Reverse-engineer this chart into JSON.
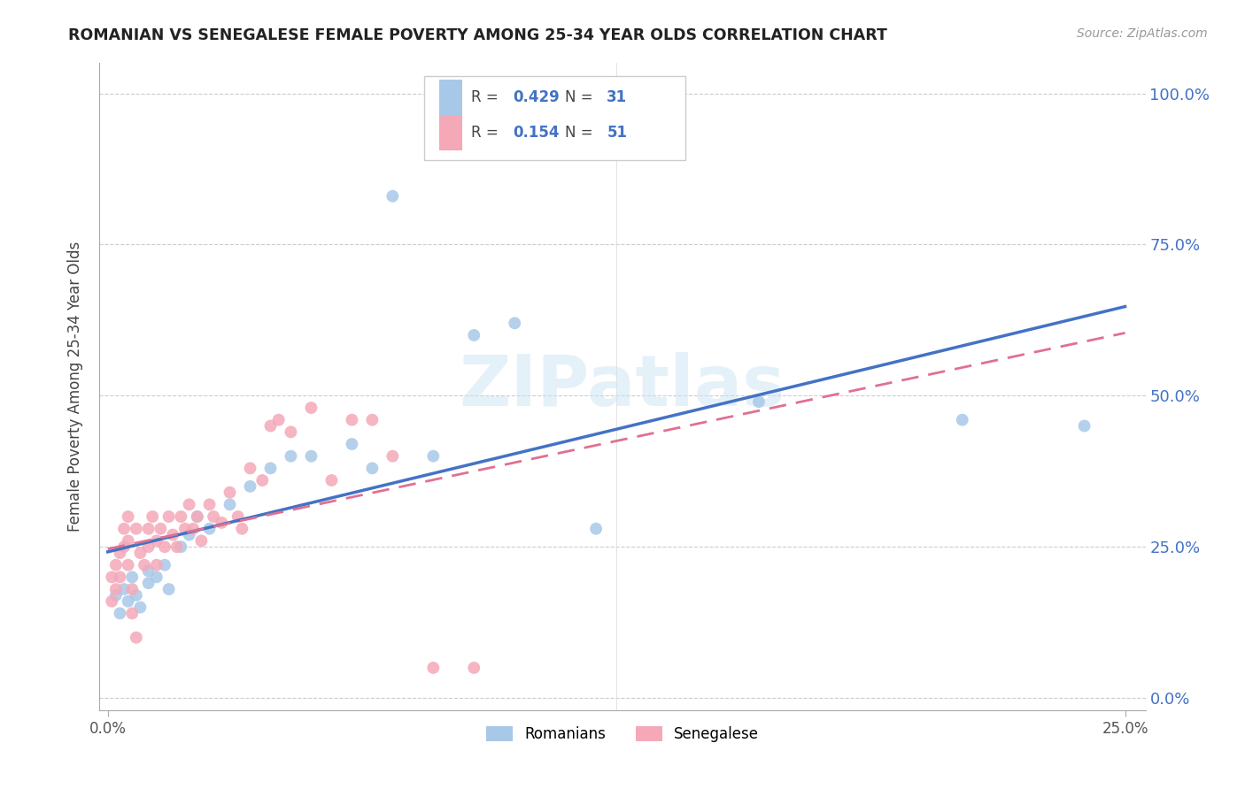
{
  "title": "ROMANIAN VS SENEGALESE FEMALE POVERTY AMONG 25-34 YEAR OLDS CORRELATION CHART",
  "source": "Source: ZipAtlas.com",
  "ylabel_label": "Female Poverty Among 25-34 Year Olds",
  "xlim": [
    -0.002,
    0.255
  ],
  "ylim": [
    -0.02,
    1.05
  ],
  "ytick_vals": [
    0.0,
    0.25,
    0.5,
    0.75,
    1.0
  ],
  "xtick_vals": [
    0.0,
    0.25
  ],
  "romanian_color": "#a8c8e8",
  "senegalese_color": "#f4a8b8",
  "trend_romanian_color": "#4472c4",
  "trend_senegalese_color": "#e07090",
  "watermark": "ZIPatlas",
  "romanian_x": [
    0.002,
    0.003,
    0.004,
    0.005,
    0.006,
    0.007,
    0.008,
    0.01,
    0.01,
    0.012,
    0.014,
    0.015,
    0.018,
    0.02,
    0.022,
    0.025,
    0.03,
    0.035,
    0.04,
    0.045,
    0.05,
    0.06,
    0.065,
    0.07,
    0.08,
    0.09,
    0.1,
    0.12,
    0.16,
    0.21,
    0.24
  ],
  "romanian_y": [
    0.17,
    0.14,
    0.18,
    0.16,
    0.2,
    0.17,
    0.15,
    0.19,
    0.21,
    0.2,
    0.22,
    0.18,
    0.25,
    0.27,
    0.3,
    0.28,
    0.32,
    0.35,
    0.38,
    0.4,
    0.4,
    0.42,
    0.38,
    0.83,
    0.4,
    0.6,
    0.62,
    0.28,
    0.49,
    0.46,
    0.45
  ],
  "senegalese_x": [
    0.001,
    0.001,
    0.002,
    0.002,
    0.003,
    0.003,
    0.004,
    0.004,
    0.005,
    0.005,
    0.005,
    0.006,
    0.006,
    0.007,
    0.007,
    0.008,
    0.009,
    0.01,
    0.01,
    0.011,
    0.012,
    0.012,
    0.013,
    0.014,
    0.015,
    0.016,
    0.017,
    0.018,
    0.019,
    0.02,
    0.021,
    0.022,
    0.023,
    0.025,
    0.026,
    0.028,
    0.03,
    0.032,
    0.033,
    0.035,
    0.038,
    0.04,
    0.042,
    0.045,
    0.05,
    0.055,
    0.06,
    0.065,
    0.07,
    0.08,
    0.09
  ],
  "senegalese_y": [
    0.2,
    0.16,
    0.22,
    0.18,
    0.24,
    0.2,
    0.28,
    0.25,
    0.3,
    0.26,
    0.22,
    0.18,
    0.14,
    0.1,
    0.28,
    0.24,
    0.22,
    0.28,
    0.25,
    0.3,
    0.26,
    0.22,
    0.28,
    0.25,
    0.3,
    0.27,
    0.25,
    0.3,
    0.28,
    0.32,
    0.28,
    0.3,
    0.26,
    0.32,
    0.3,
    0.29,
    0.34,
    0.3,
    0.28,
    0.38,
    0.36,
    0.45,
    0.46,
    0.44,
    0.48,
    0.36,
    0.46,
    0.46,
    0.4,
    0.05,
    0.05
  ],
  "r_romanian": "0.429",
  "n_romanian": "31",
  "r_senegalese": "0.154",
  "n_senegalese": "51"
}
